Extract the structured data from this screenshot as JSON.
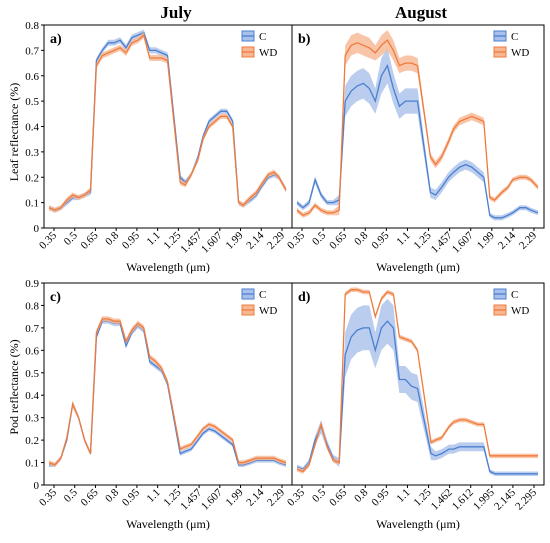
{
  "column_titles": [
    "July",
    "August"
  ],
  "colors": {
    "C": "#4a7fd0",
    "C_band": "#a9c0ea",
    "WD": "#ee7b3d",
    "WD_band": "#f7b792"
  },
  "panels": [
    {
      "letter": "a)",
      "ylabel": "Leaf reflectance (%)",
      "xlabel": "Wavelength (μm)",
      "ylim": [
        0,
        0.8
      ],
      "yticks": [
        "0",
        "0.1",
        "0.2",
        "0.3",
        "0.4",
        "0.5",
        "0.6",
        "0.7",
        "0.8"
      ],
      "xticks": [
        "0.35",
        "0.5",
        "0.65",
        "0.8",
        "0.95",
        "1.1",
        "1.25",
        "1.457",
        "1.607",
        "1.99",
        "2.14",
        "2.29"
      ],
      "legend": [
        "C",
        "WD"
      ]
    },
    {
      "letter": "b)",
      "ylabel": "",
      "xlabel": "Wavelength (μm)",
      "ylim": [
        0,
        0.8
      ],
      "yticks": [],
      "xticks": [
        "0.35",
        "0.5",
        "0.65",
        "0.8",
        "0.95",
        "1.1",
        "1.25",
        "1.457",
        "1.607",
        "1.99",
        "2.14",
        "2.29"
      ],
      "legend": [
        "C",
        "WD"
      ]
    },
    {
      "letter": "c)",
      "ylabel": "Pod reflectance (%)",
      "xlabel": "Wavelength (μm)",
      "ylim": [
        0,
        0.9
      ],
      "yticks": [
        "0",
        "0.1",
        "0.2",
        "0.3",
        "0.4",
        "0.5",
        "0.6",
        "0.7",
        "0.8",
        "0.9"
      ],
      "xticks": [
        "0.35",
        "0.5",
        "0.65",
        "0.8",
        "0.95",
        "1.1",
        "1.25",
        "1.457",
        "1.607",
        "1.99",
        "2.14",
        "2.29"
      ],
      "legend": [
        "C",
        "WD"
      ]
    },
    {
      "letter": "d)",
      "ylabel": "",
      "xlabel": "Wavelength (μm)",
      "ylim": [
        0,
        0.9
      ],
      "yticks": [],
      "xticks": [
        "0.35",
        "0.5",
        "0.65",
        "0.8",
        "0.95",
        "1.1",
        "1.25",
        "1.462",
        "1.612",
        "1.995",
        "2.145",
        "2.295"
      ],
      "legend": [
        "C",
        "WD"
      ]
    }
  ],
  "chart_data": [
    {
      "type": "line",
      "panel": "a",
      "title": "July",
      "xlabel": "Wavelength (μm)",
      "ylabel": "Leaf reflectance (%)",
      "ylim": [
        0,
        0.8
      ],
      "x": [
        0.35,
        0.4,
        0.45,
        0.5,
        0.55,
        0.6,
        0.65,
        0.7,
        0.75,
        0.8,
        0.85,
        0.9,
        0.95,
        1.0,
        1.05,
        1.1,
        1.15,
        1.2,
        1.25,
        1.3,
        1.35,
        1.457,
        1.5,
        1.55,
        1.607,
        1.65,
        1.7,
        1.75,
        1.8,
        1.85,
        1.9,
        1.95,
        1.99,
        2.05,
        2.1,
        2.14,
        2.2,
        2.25,
        2.29,
        2.35
      ],
      "series": [
        {
          "name": "C",
          "values": [
            0.08,
            0.07,
            0.08,
            0.1,
            0.12,
            0.12,
            0.13,
            0.14,
            0.66,
            0.7,
            0.73,
            0.73,
            0.74,
            0.71,
            0.75,
            0.76,
            0.77,
            0.7,
            0.7,
            0.69,
            0.68,
            0.2,
            0.18,
            0.21,
            0.28,
            0.36,
            0.42,
            0.44,
            0.46,
            0.46,
            0.42,
            0.1,
            0.09,
            0.11,
            0.13,
            0.16,
            0.2,
            0.21,
            0.2,
            0.15
          ],
          "band": [
            0.01,
            0.01,
            0.01,
            0.01,
            0.01,
            0.01,
            0.01,
            0.01,
            0.01,
            0.01,
            0.012,
            0.012,
            0.012,
            0.012,
            0.012,
            0.012,
            0.012,
            0.012,
            0.012,
            0.012,
            0.012,
            0.01,
            0.01,
            0.01,
            0.01,
            0.01,
            0.01,
            0.01,
            0.01,
            0.01,
            0.01,
            0.01,
            0.01,
            0.01,
            0.01,
            0.01,
            0.01,
            0.01,
            0.01,
            0.01
          ]
        },
        {
          "name": "WD",
          "values": [
            0.08,
            0.07,
            0.08,
            0.11,
            0.13,
            0.12,
            0.13,
            0.15,
            0.64,
            0.68,
            0.69,
            0.7,
            0.71,
            0.69,
            0.73,
            0.74,
            0.76,
            0.67,
            0.67,
            0.67,
            0.66,
            0.18,
            0.17,
            0.21,
            0.27,
            0.35,
            0.4,
            0.42,
            0.44,
            0.44,
            0.4,
            0.1,
            0.09,
            0.12,
            0.14,
            0.17,
            0.21,
            0.22,
            0.2,
            0.15
          ],
          "band": [
            0.01,
            0.01,
            0.01,
            0.01,
            0.01,
            0.01,
            0.01,
            0.01,
            0.012,
            0.012,
            0.012,
            0.012,
            0.012,
            0.012,
            0.012,
            0.012,
            0.012,
            0.012,
            0.012,
            0.012,
            0.012,
            0.01,
            0.01,
            0.01,
            0.01,
            0.01,
            0.01,
            0.01,
            0.01,
            0.01,
            0.01,
            0.01,
            0.01,
            0.01,
            0.01,
            0.01,
            0.01,
            0.01,
            0.01,
            0.01
          ]
        }
      ]
    },
    {
      "type": "line",
      "panel": "b",
      "title": "August",
      "xlabel": "Wavelength (μm)",
      "ylabel": "",
      "ylim": [
        0,
        0.8
      ],
      "x": [
        0.35,
        0.4,
        0.45,
        0.5,
        0.55,
        0.6,
        0.65,
        0.7,
        0.75,
        0.8,
        0.85,
        0.9,
        0.95,
        1.0,
        1.05,
        1.1,
        1.15,
        1.2,
        1.25,
        1.3,
        1.35,
        1.457,
        1.5,
        1.55,
        1.607,
        1.65,
        1.7,
        1.75,
        1.8,
        1.85,
        1.9,
        1.95,
        1.99,
        2.05,
        2.1,
        2.14,
        2.2,
        2.25,
        2.29,
        2.35
      ],
      "series": [
        {
          "name": "C",
          "values": [
            0.1,
            0.08,
            0.1,
            0.19,
            0.13,
            0.1,
            0.1,
            0.11,
            0.5,
            0.54,
            0.56,
            0.57,
            0.55,
            0.5,
            0.6,
            0.64,
            0.55,
            0.48,
            0.5,
            0.5,
            0.5,
            0.14,
            0.13,
            0.16,
            0.2,
            0.22,
            0.24,
            0.25,
            0.24,
            0.22,
            0.2,
            0.05,
            0.04,
            0.04,
            0.05,
            0.06,
            0.08,
            0.08,
            0.07,
            0.06
          ],
          "band": [
            0.01,
            0.01,
            0.012,
            0.015,
            0.012,
            0.01,
            0.01,
            0.02,
            0.06,
            0.06,
            0.06,
            0.06,
            0.06,
            0.05,
            0.07,
            0.07,
            0.06,
            0.05,
            0.05,
            0.05,
            0.05,
            0.02,
            0.02,
            0.02,
            0.02,
            0.02,
            0.02,
            0.02,
            0.02,
            0.02,
            0.02,
            0.01,
            0.01,
            0.01,
            0.01,
            0.01,
            0.01,
            0.01,
            0.01,
            0.01
          ]
        },
        {
          "name": "WD",
          "values": [
            0.07,
            0.05,
            0.06,
            0.09,
            0.07,
            0.06,
            0.06,
            0.07,
            0.68,
            0.72,
            0.73,
            0.72,
            0.71,
            0.69,
            0.72,
            0.74,
            0.7,
            0.64,
            0.65,
            0.65,
            0.64,
            0.28,
            0.25,
            0.28,
            0.34,
            0.39,
            0.42,
            0.43,
            0.44,
            0.43,
            0.42,
            0.12,
            0.11,
            0.14,
            0.16,
            0.19,
            0.2,
            0.2,
            0.19,
            0.16
          ],
          "band": [
            0.01,
            0.01,
            0.01,
            0.01,
            0.01,
            0.01,
            0.01,
            0.02,
            0.04,
            0.04,
            0.04,
            0.04,
            0.04,
            0.03,
            0.04,
            0.04,
            0.04,
            0.03,
            0.03,
            0.03,
            0.03,
            0.015,
            0.015,
            0.015,
            0.015,
            0.015,
            0.015,
            0.015,
            0.015,
            0.015,
            0.015,
            0.01,
            0.01,
            0.01,
            0.01,
            0.01,
            0.01,
            0.01,
            0.01,
            0.01
          ]
        }
      ]
    },
    {
      "type": "line",
      "panel": "c",
      "title": "July",
      "xlabel": "Wavelength (μm)",
      "ylabel": "Pod reflectance (%)",
      "ylim": [
        0,
        0.9
      ],
      "x": [
        0.35,
        0.4,
        0.45,
        0.5,
        0.55,
        0.6,
        0.65,
        0.7,
        0.75,
        0.8,
        0.85,
        0.9,
        0.95,
        1.0,
        1.05,
        1.1,
        1.15,
        1.2,
        1.25,
        1.3,
        1.35,
        1.457,
        1.5,
        1.55,
        1.607,
        1.65,
        1.7,
        1.75,
        1.8,
        1.85,
        1.9,
        1.95,
        1.99,
        2.05,
        2.1,
        2.14,
        2.2,
        2.25,
        2.29,
        2.35
      ],
      "series": [
        {
          "name": "C",
          "values": [
            0.09,
            0.09,
            0.12,
            0.2,
            0.36,
            0.3,
            0.2,
            0.14,
            0.66,
            0.73,
            0.73,
            0.72,
            0.72,
            0.62,
            0.68,
            0.71,
            0.69,
            0.55,
            0.53,
            0.51,
            0.45,
            0.14,
            0.15,
            0.16,
            0.2,
            0.23,
            0.25,
            0.24,
            0.22,
            0.2,
            0.18,
            0.09,
            0.09,
            0.1,
            0.11,
            0.11,
            0.11,
            0.11,
            0.1,
            0.09
          ],
          "band": [
            0.01,
            0.01,
            0.01,
            0.01,
            0.015,
            0.01,
            0.01,
            0.01,
            0.012,
            0.012,
            0.012,
            0.012,
            0.012,
            0.012,
            0.012,
            0.012,
            0.012,
            0.012,
            0.012,
            0.012,
            0.012,
            0.01,
            0.01,
            0.01,
            0.01,
            0.01,
            0.01,
            0.01,
            0.01,
            0.01,
            0.01,
            0.01,
            0.01,
            0.01,
            0.01,
            0.01,
            0.01,
            0.01,
            0.01,
            0.01
          ]
        },
        {
          "name": "WD",
          "values": [
            0.1,
            0.09,
            0.12,
            0.21,
            0.36,
            0.3,
            0.2,
            0.14,
            0.68,
            0.74,
            0.74,
            0.73,
            0.73,
            0.64,
            0.69,
            0.72,
            0.7,
            0.57,
            0.55,
            0.52,
            0.46,
            0.16,
            0.17,
            0.18,
            0.22,
            0.25,
            0.27,
            0.26,
            0.24,
            0.22,
            0.2,
            0.1,
            0.1,
            0.11,
            0.12,
            0.12,
            0.12,
            0.12,
            0.11,
            0.1
          ],
          "band": [
            0.01,
            0.01,
            0.01,
            0.01,
            0.015,
            0.01,
            0.01,
            0.01,
            0.012,
            0.012,
            0.012,
            0.012,
            0.012,
            0.012,
            0.012,
            0.012,
            0.012,
            0.012,
            0.012,
            0.012,
            0.012,
            0.01,
            0.01,
            0.01,
            0.01,
            0.01,
            0.01,
            0.01,
            0.01,
            0.01,
            0.01,
            0.01,
            0.01,
            0.01,
            0.01,
            0.01,
            0.01,
            0.01,
            0.01,
            0.01
          ]
        }
      ]
    },
    {
      "type": "line",
      "panel": "d",
      "title": "August",
      "xlabel": "Wavelength (μm)",
      "ylabel": "",
      "ylim": [
        0,
        0.9
      ],
      "x": [
        0.35,
        0.4,
        0.45,
        0.5,
        0.55,
        0.6,
        0.65,
        0.7,
        0.75,
        0.8,
        0.85,
        0.9,
        0.95,
        1.0,
        1.05,
        1.1,
        1.15,
        1.2,
        1.25,
        1.3,
        1.35,
        1.462,
        1.5,
        1.55,
        1.612,
        1.65,
        1.7,
        1.75,
        1.8,
        1.85,
        1.9,
        1.95,
        1.995,
        2.05,
        2.1,
        2.145,
        2.2,
        2.25,
        2.295,
        2.35
      ],
      "series": [
        {
          "name": "C",
          "values": [
            0.08,
            0.07,
            0.1,
            0.2,
            0.26,
            0.18,
            0.12,
            0.1,
            0.58,
            0.66,
            0.69,
            0.7,
            0.7,
            0.6,
            0.7,
            0.73,
            0.7,
            0.47,
            0.47,
            0.44,
            0.43,
            0.14,
            0.13,
            0.14,
            0.16,
            0.16,
            0.17,
            0.17,
            0.17,
            0.17,
            0.17,
            0.06,
            0.05,
            0.05,
            0.05,
            0.05,
            0.05,
            0.05,
            0.05,
            0.05
          ],
          "band": [
            0.01,
            0.01,
            0.015,
            0.02,
            0.03,
            0.02,
            0.015,
            0.02,
            0.1,
            0.1,
            0.1,
            0.1,
            0.1,
            0.08,
            0.1,
            0.1,
            0.1,
            0.06,
            0.06,
            0.06,
            0.06,
            0.03,
            0.02,
            0.02,
            0.02,
            0.02,
            0.02,
            0.02,
            0.02,
            0.02,
            0.02,
            0.01,
            0.01,
            0.01,
            0.01,
            0.01,
            0.01,
            0.01,
            0.01,
            0.01
          ]
        },
        {
          "name": "WD",
          "values": [
            0.07,
            0.06,
            0.09,
            0.18,
            0.27,
            0.17,
            0.11,
            0.1,
            0.85,
            0.87,
            0.87,
            0.86,
            0.86,
            0.75,
            0.83,
            0.86,
            0.85,
            0.66,
            0.65,
            0.64,
            0.6,
            0.19,
            0.2,
            0.21,
            0.26,
            0.28,
            0.29,
            0.29,
            0.28,
            0.27,
            0.27,
            0.13,
            0.13,
            0.13,
            0.13,
            0.13,
            0.13,
            0.13,
            0.13,
            0.13
          ],
          "band": [
            0.01,
            0.01,
            0.01,
            0.01,
            0.015,
            0.01,
            0.01,
            0.01,
            0.01,
            0.01,
            0.01,
            0.01,
            0.01,
            0.01,
            0.01,
            0.01,
            0.01,
            0.01,
            0.01,
            0.01,
            0.01,
            0.01,
            0.01,
            0.01,
            0.01,
            0.01,
            0.01,
            0.01,
            0.01,
            0.01,
            0.01,
            0.01,
            0.01,
            0.01,
            0.01,
            0.01,
            0.01,
            0.01,
            0.01,
            0.01
          ]
        }
      ]
    }
  ]
}
